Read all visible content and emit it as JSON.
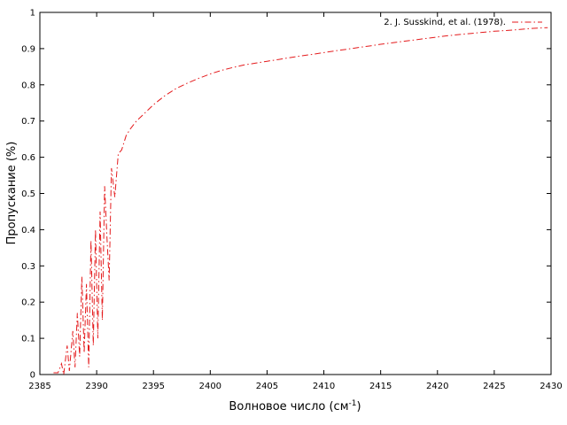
{
  "chart_data": {
    "type": "line",
    "xlabel_main": "Волновое число (см",
    "xlabel_sup": "-1",
    "xlabel_close": ")",
    "ylabel": "Пропускание (%)",
    "xlim": [
      2385,
      2430
    ],
    "ylim": [
      0,
      1
    ],
    "x_ticks": [
      2385,
      2390,
      2395,
      2400,
      2405,
      2410,
      2415,
      2420,
      2425,
      2430
    ],
    "y_ticks": [
      0,
      0.1,
      0.2,
      0.3,
      0.4,
      0.5,
      0.6,
      0.7,
      0.8,
      0.9,
      1
    ],
    "y_tick_labels": [
      "0",
      "0.1",
      "0.2",
      "0.3",
      "0.4",
      "0.5",
      "0.6",
      "0.7",
      "0.8",
      "0.9",
      "1"
    ],
    "grid": false,
    "legend_position": "top-right",
    "series": [
      {
        "name": "2. J. Susskind, et al. (1978).",
        "color": "#e41a1c",
        "dash": "dash-dot",
        "points": [
          [
            2386.2,
            0.005
          ],
          [
            2386.6,
            0.005
          ],
          [
            2386.9,
            0.03
          ],
          [
            2387.1,
            0.0
          ],
          [
            2387.4,
            0.08
          ],
          [
            2387.6,
            0.01
          ],
          [
            2387.9,
            0.12
          ],
          [
            2388.1,
            0.02
          ],
          [
            2388.3,
            0.17
          ],
          [
            2388.5,
            0.05
          ],
          [
            2388.7,
            0.27
          ],
          [
            2388.9,
            0.06
          ],
          [
            2389.1,
            0.25
          ],
          [
            2389.3,
            0.02
          ],
          [
            2389.5,
            0.37
          ],
          [
            2389.7,
            0.08
          ],
          [
            2389.9,
            0.4
          ],
          [
            2390.1,
            0.1
          ],
          [
            2390.3,
            0.45
          ],
          [
            2390.5,
            0.15
          ],
          [
            2390.7,
            0.52
          ],
          [
            2390.9,
            0.38
          ],
          [
            2391.1,
            0.26
          ],
          [
            2391.3,
            0.57
          ],
          [
            2391.6,
            0.49
          ],
          [
            2391.9,
            0.61
          ],
          [
            2392.2,
            0.62
          ],
          [
            2392.6,
            0.66
          ],
          [
            2393.0,
            0.68
          ],
          [
            2393.5,
            0.7
          ],
          [
            2394.0,
            0.715
          ],
          [
            2395.0,
            0.745
          ],
          [
            2396.0,
            0.77
          ],
          [
            2397.0,
            0.79
          ],
          [
            2398.0,
            0.805
          ],
          [
            2399.0,
            0.818
          ],
          [
            2400.0,
            0.83
          ],
          [
            2401.0,
            0.84
          ],
          [
            2402.0,
            0.848
          ],
          [
            2403.0,
            0.855
          ],
          [
            2404.0,
            0.86
          ],
          [
            2405.0,
            0.865
          ],
          [
            2406.0,
            0.87
          ],
          [
            2407.0,
            0.875
          ],
          [
            2408.0,
            0.88
          ],
          [
            2409.0,
            0.884
          ],
          [
            2410.0,
            0.889
          ],
          [
            2411.0,
            0.894
          ],
          [
            2412.0,
            0.898
          ],
          [
            2413.0,
            0.903
          ],
          [
            2414.0,
            0.907
          ],
          [
            2415.0,
            0.912
          ],
          [
            2416.0,
            0.916
          ],
          [
            2417.0,
            0.92
          ],
          [
            2418.0,
            0.924
          ],
          [
            2419.0,
            0.928
          ],
          [
            2420.0,
            0.932
          ],
          [
            2421.0,
            0.936
          ],
          [
            2422.0,
            0.939
          ],
          [
            2423.0,
            0.942
          ],
          [
            2424.0,
            0.945
          ],
          [
            2425.0,
            0.948
          ],
          [
            2426.0,
            0.95
          ],
          [
            2427.0,
            0.952
          ],
          [
            2428.0,
            0.955
          ],
          [
            2429.0,
            0.957
          ],
          [
            2429.7,
            0.958
          ]
        ]
      }
    ]
  }
}
